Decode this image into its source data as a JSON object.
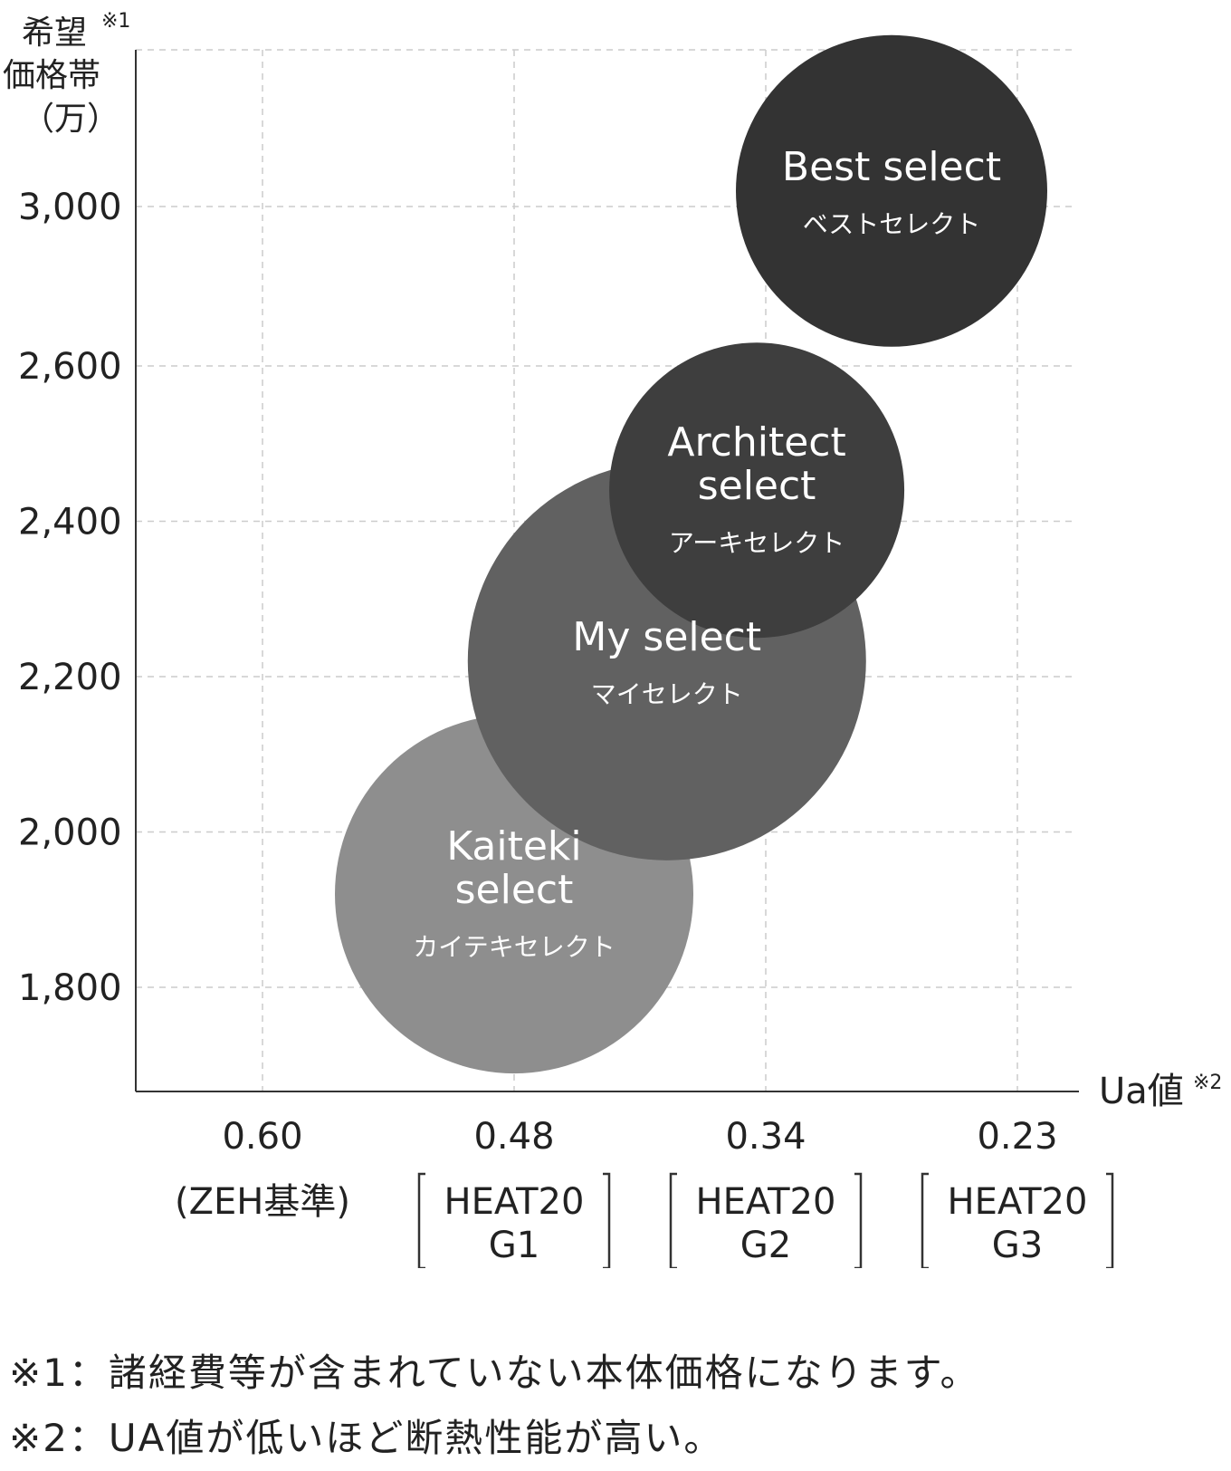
{
  "chart_data": {
    "type": "bubble",
    "y_axis": {
      "title_lines": [
        "希望",
        "価格帯",
        "（万）"
      ],
      "title_mark": "※1",
      "ticks": [
        1800,
        2000,
        2200,
        2400,
        2600,
        3000
      ],
      "tick_labels": [
        "1,800",
        "2,000",
        "2,200",
        "2,400",
        "2,600",
        "3,000"
      ]
    },
    "x_axis": {
      "title": "Ua値",
      "title_mark": "※2",
      "categories": [
        "0.60",
        "0.48",
        "0.34",
        "0.23"
      ],
      "category_notes": [
        {
          "lines": [
            "(ZEH基準)"
          ],
          "bracket": false
        },
        {
          "lines": [
            "HEAT20",
            "G1"
          ],
          "bracket": true
        },
        {
          "lines": [
            "HEAT20",
            "G2"
          ],
          "bracket": true
        },
        {
          "lines": [
            "HEAT20",
            "G3"
          ],
          "bracket": true
        }
      ],
      "reversed": true
    },
    "grid": true,
    "series": [
      {
        "name": "Kaiteki  select",
        "subname": "カイテキセレクト",
        "x": 0.48,
        "y": 1920,
        "color": "#8e8e8e"
      },
      {
        "name": "My select",
        "subname": "マイセレクト",
        "x": 0.395,
        "y": 2220,
        "color": "#616161"
      },
      {
        "name": "Architect select",
        "subname": "アーキセレクト",
        "x": 0.345,
        "y": 2440,
        "color": "#3e3e3e"
      },
      {
        "name": "Best select",
        "subname": "ベストセレクト",
        "x": 0.285,
        "y": 3040,
        "color": "#333333"
      }
    ]
  },
  "notes": [
    "※1：諸経費等が含まれていない本体価格になります。",
    "※2：UA値が低いほど断熱性能が高い。"
  ]
}
